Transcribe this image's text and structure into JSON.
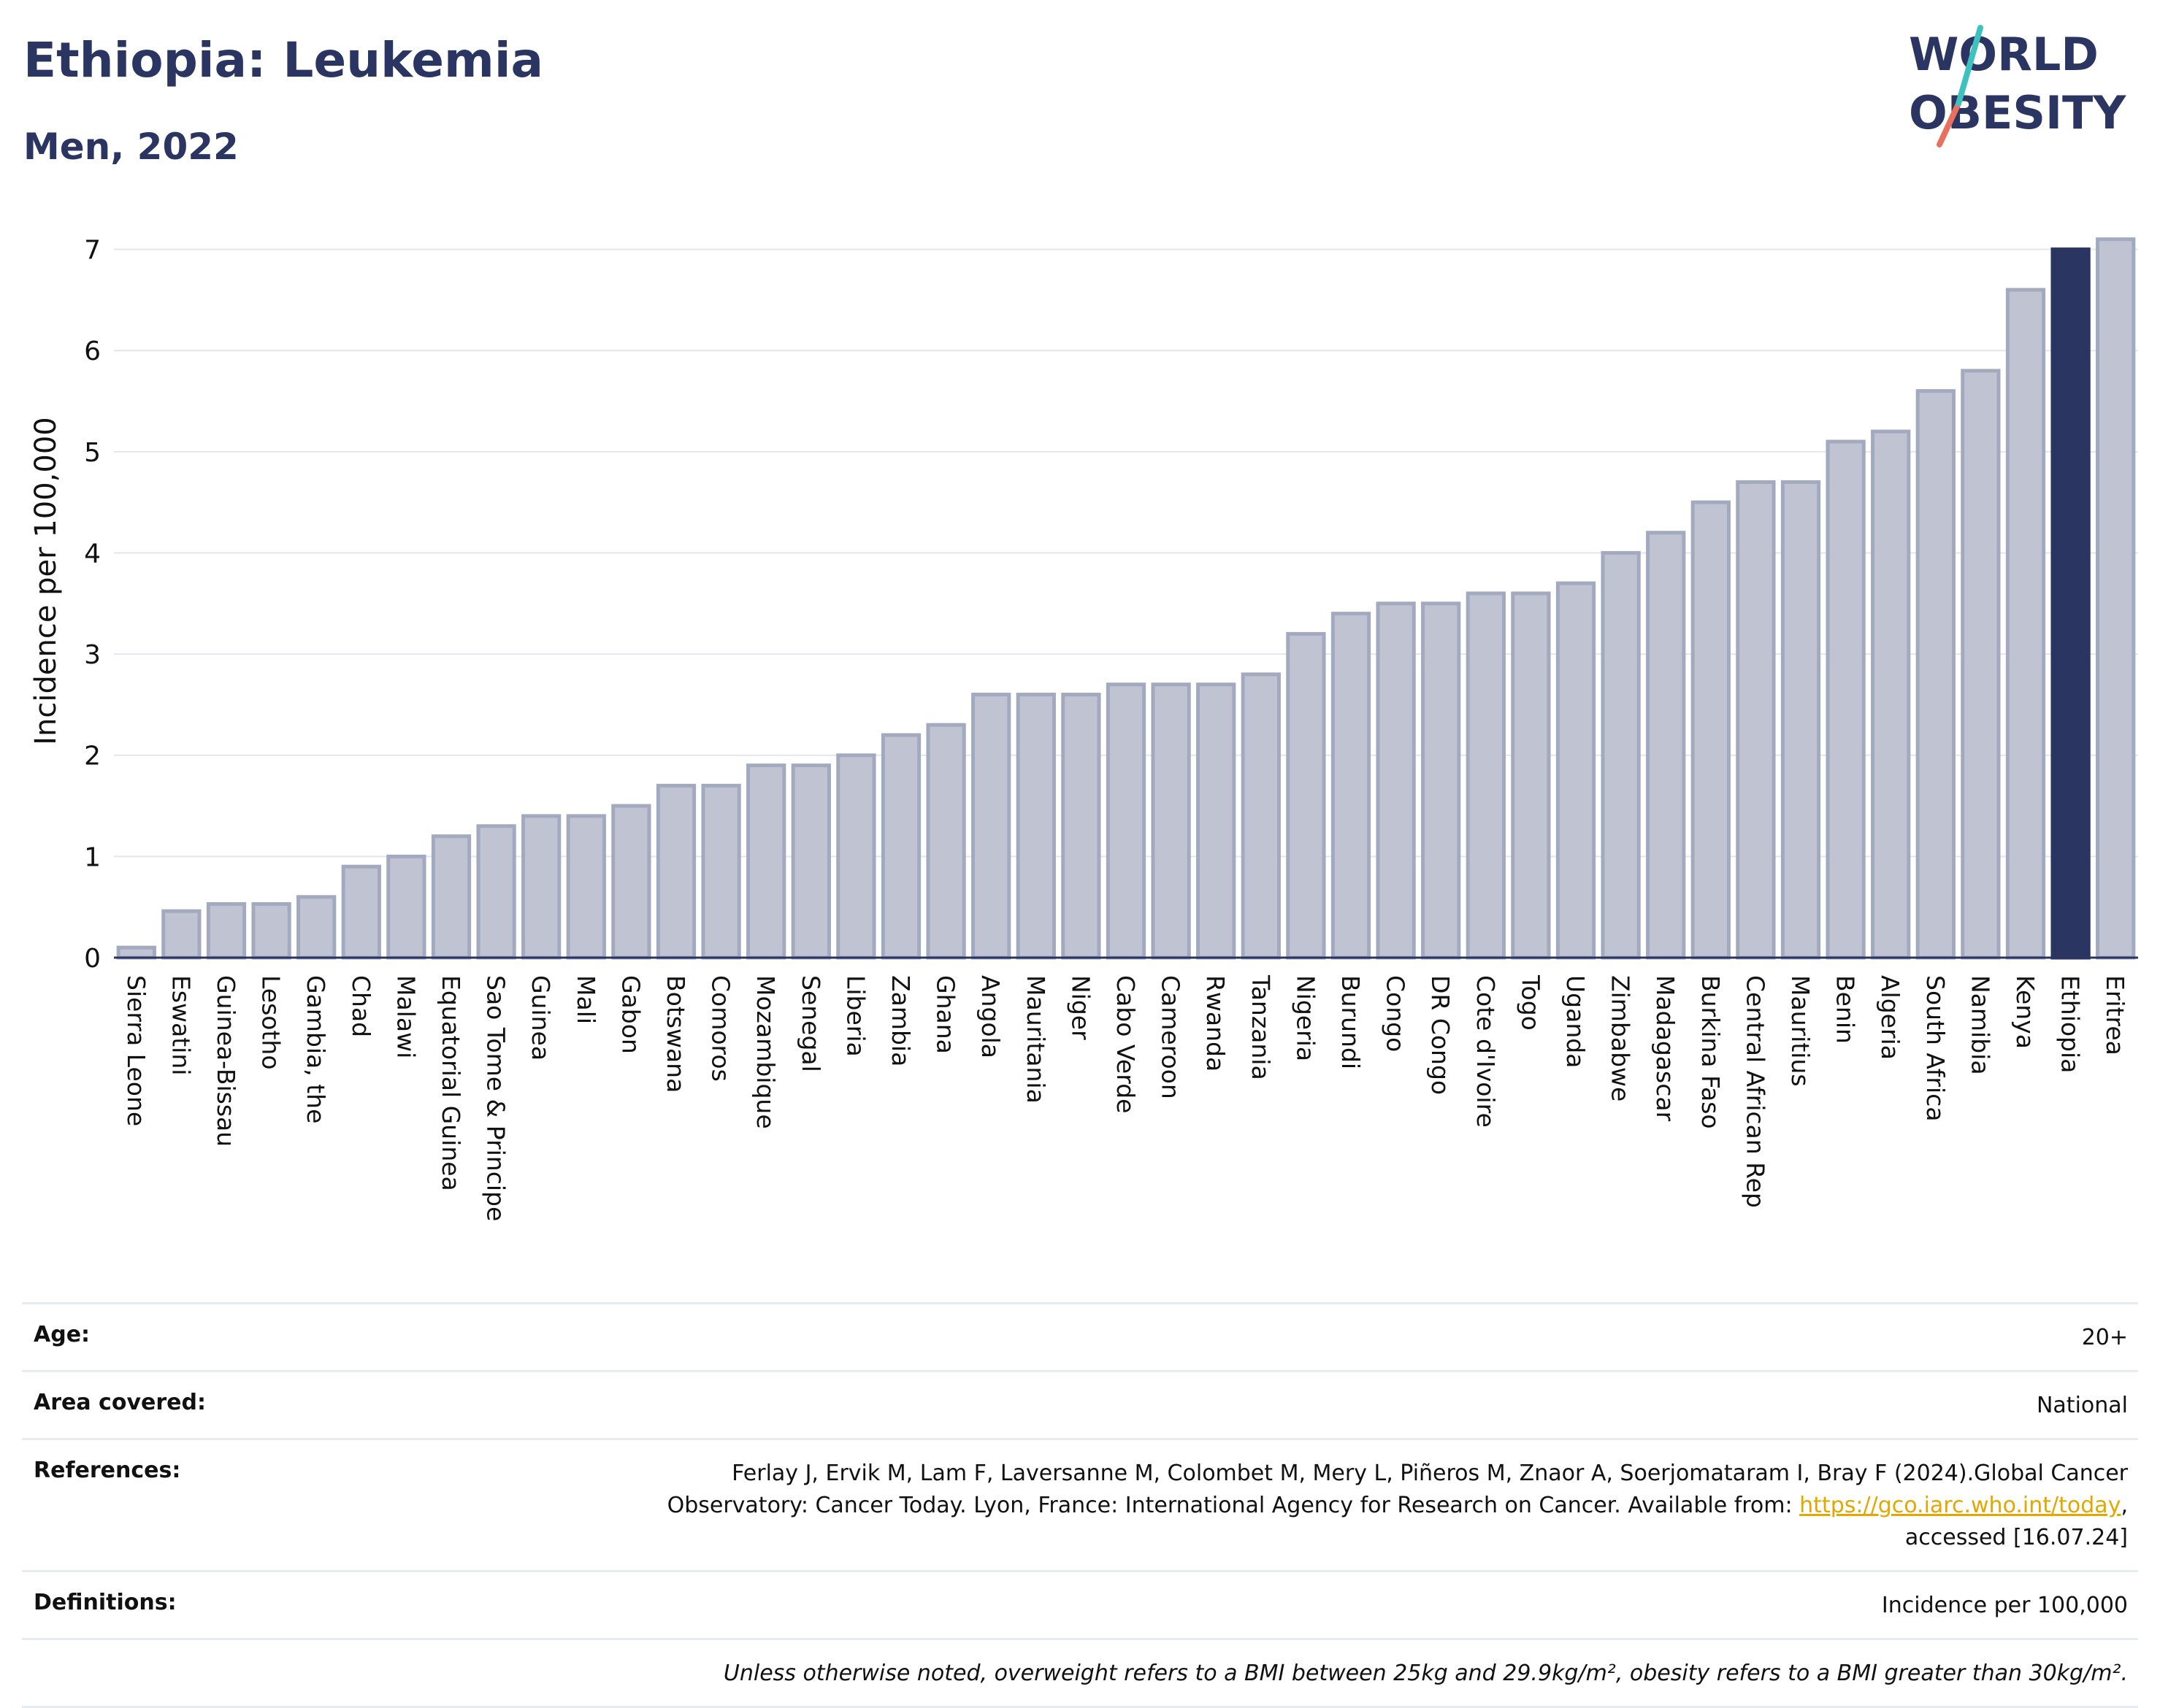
{
  "title": "Ethiopia: Leukemia",
  "subtitle": "Men, 2022",
  "logo": {
    "line1": "WORLD",
    "line2": "OBESITY"
  },
  "colors": {
    "title": "#2b3561",
    "bar": "#c0c4d2",
    "bar_stroke": "#a3a9bf",
    "highlight": "#2b3561",
    "grid": "#e3e6ee",
    "link": "#e3a800"
  },
  "chart_data": {
    "type": "bar",
    "ylabel": "Incidence per 100,000",
    "ylim": [
      0,
      7.3
    ],
    "yticks": [
      0,
      1,
      2,
      3,
      4,
      5,
      6,
      7
    ],
    "grid": true,
    "highlight": "Ethiopia",
    "categories": [
      "Sierra Leone",
      "Eswatini",
      "Guinea-Bissau",
      "Lesotho",
      "Gambia, the",
      "Chad",
      "Malawi",
      "Equatorial Guinea",
      "Sao Tome & Principe",
      "Guinea",
      "Mali",
      "Gabon",
      "Botswana",
      "Comoros",
      "Mozambique",
      "Senegal",
      "Liberia",
      "Zambia",
      "Ghana",
      "Angola",
      "Mauritania",
      "Niger",
      "Cabo Verde",
      "Cameroon",
      "Rwanda",
      "Tanzania",
      "Nigeria",
      "Burundi",
      "Congo",
      "DR Congo",
      "Cote d'Ivoire",
      "Togo",
      "Uganda",
      "Zimbabwe",
      "Madagascar",
      "Burkina Faso",
      "Central African Rep",
      "Mauritius",
      "Benin",
      "Algeria",
      "South Africa",
      "Namibia",
      "Kenya",
      "Ethiopia",
      "Eritrea"
    ],
    "values": [
      0.1,
      0.46,
      0.53,
      0.53,
      0.6,
      0.9,
      1.0,
      1.2,
      1.3,
      1.4,
      1.4,
      1.5,
      1.7,
      1.7,
      1.9,
      1.9,
      2.0,
      2.2,
      2.3,
      2.6,
      2.6,
      2.6,
      2.7,
      2.7,
      2.7,
      2.8,
      3.2,
      3.4,
      3.5,
      3.5,
      3.6,
      3.6,
      3.7,
      4.0,
      4.2,
      4.5,
      4.7,
      4.7,
      5.1,
      5.2,
      5.6,
      5.8,
      6.6,
      7.0,
      7.1
    ]
  },
  "meta": {
    "age_label": "Age:",
    "age_value": "20+",
    "area_label": "Area covered:",
    "area_value": "National",
    "references_label": "References:",
    "references_line1": "Ferlay J, Ervik M, Lam F, Laversanne M, Colombet M, Mery L, Piñeros M, Znaor A, Soerjomataram I, Bray F (2024).Global Cancer",
    "references_line2": "Observatory: Cancer Today. Lyon, France: International Agency for Research on Cancer. Available from: ",
    "references_link": "https://gco.iarc.who.int/today",
    "references_link_suffix": ",",
    "references_line3": "accessed [16.07.24]",
    "definitions_label": "Definitions:",
    "definitions_value": "Incidence per 100,000",
    "note": "Unless otherwise noted, overweight refers to a BMI between 25kg and 29.9kg/m², obesity refers to a BMI greater than 30kg/m²."
  }
}
